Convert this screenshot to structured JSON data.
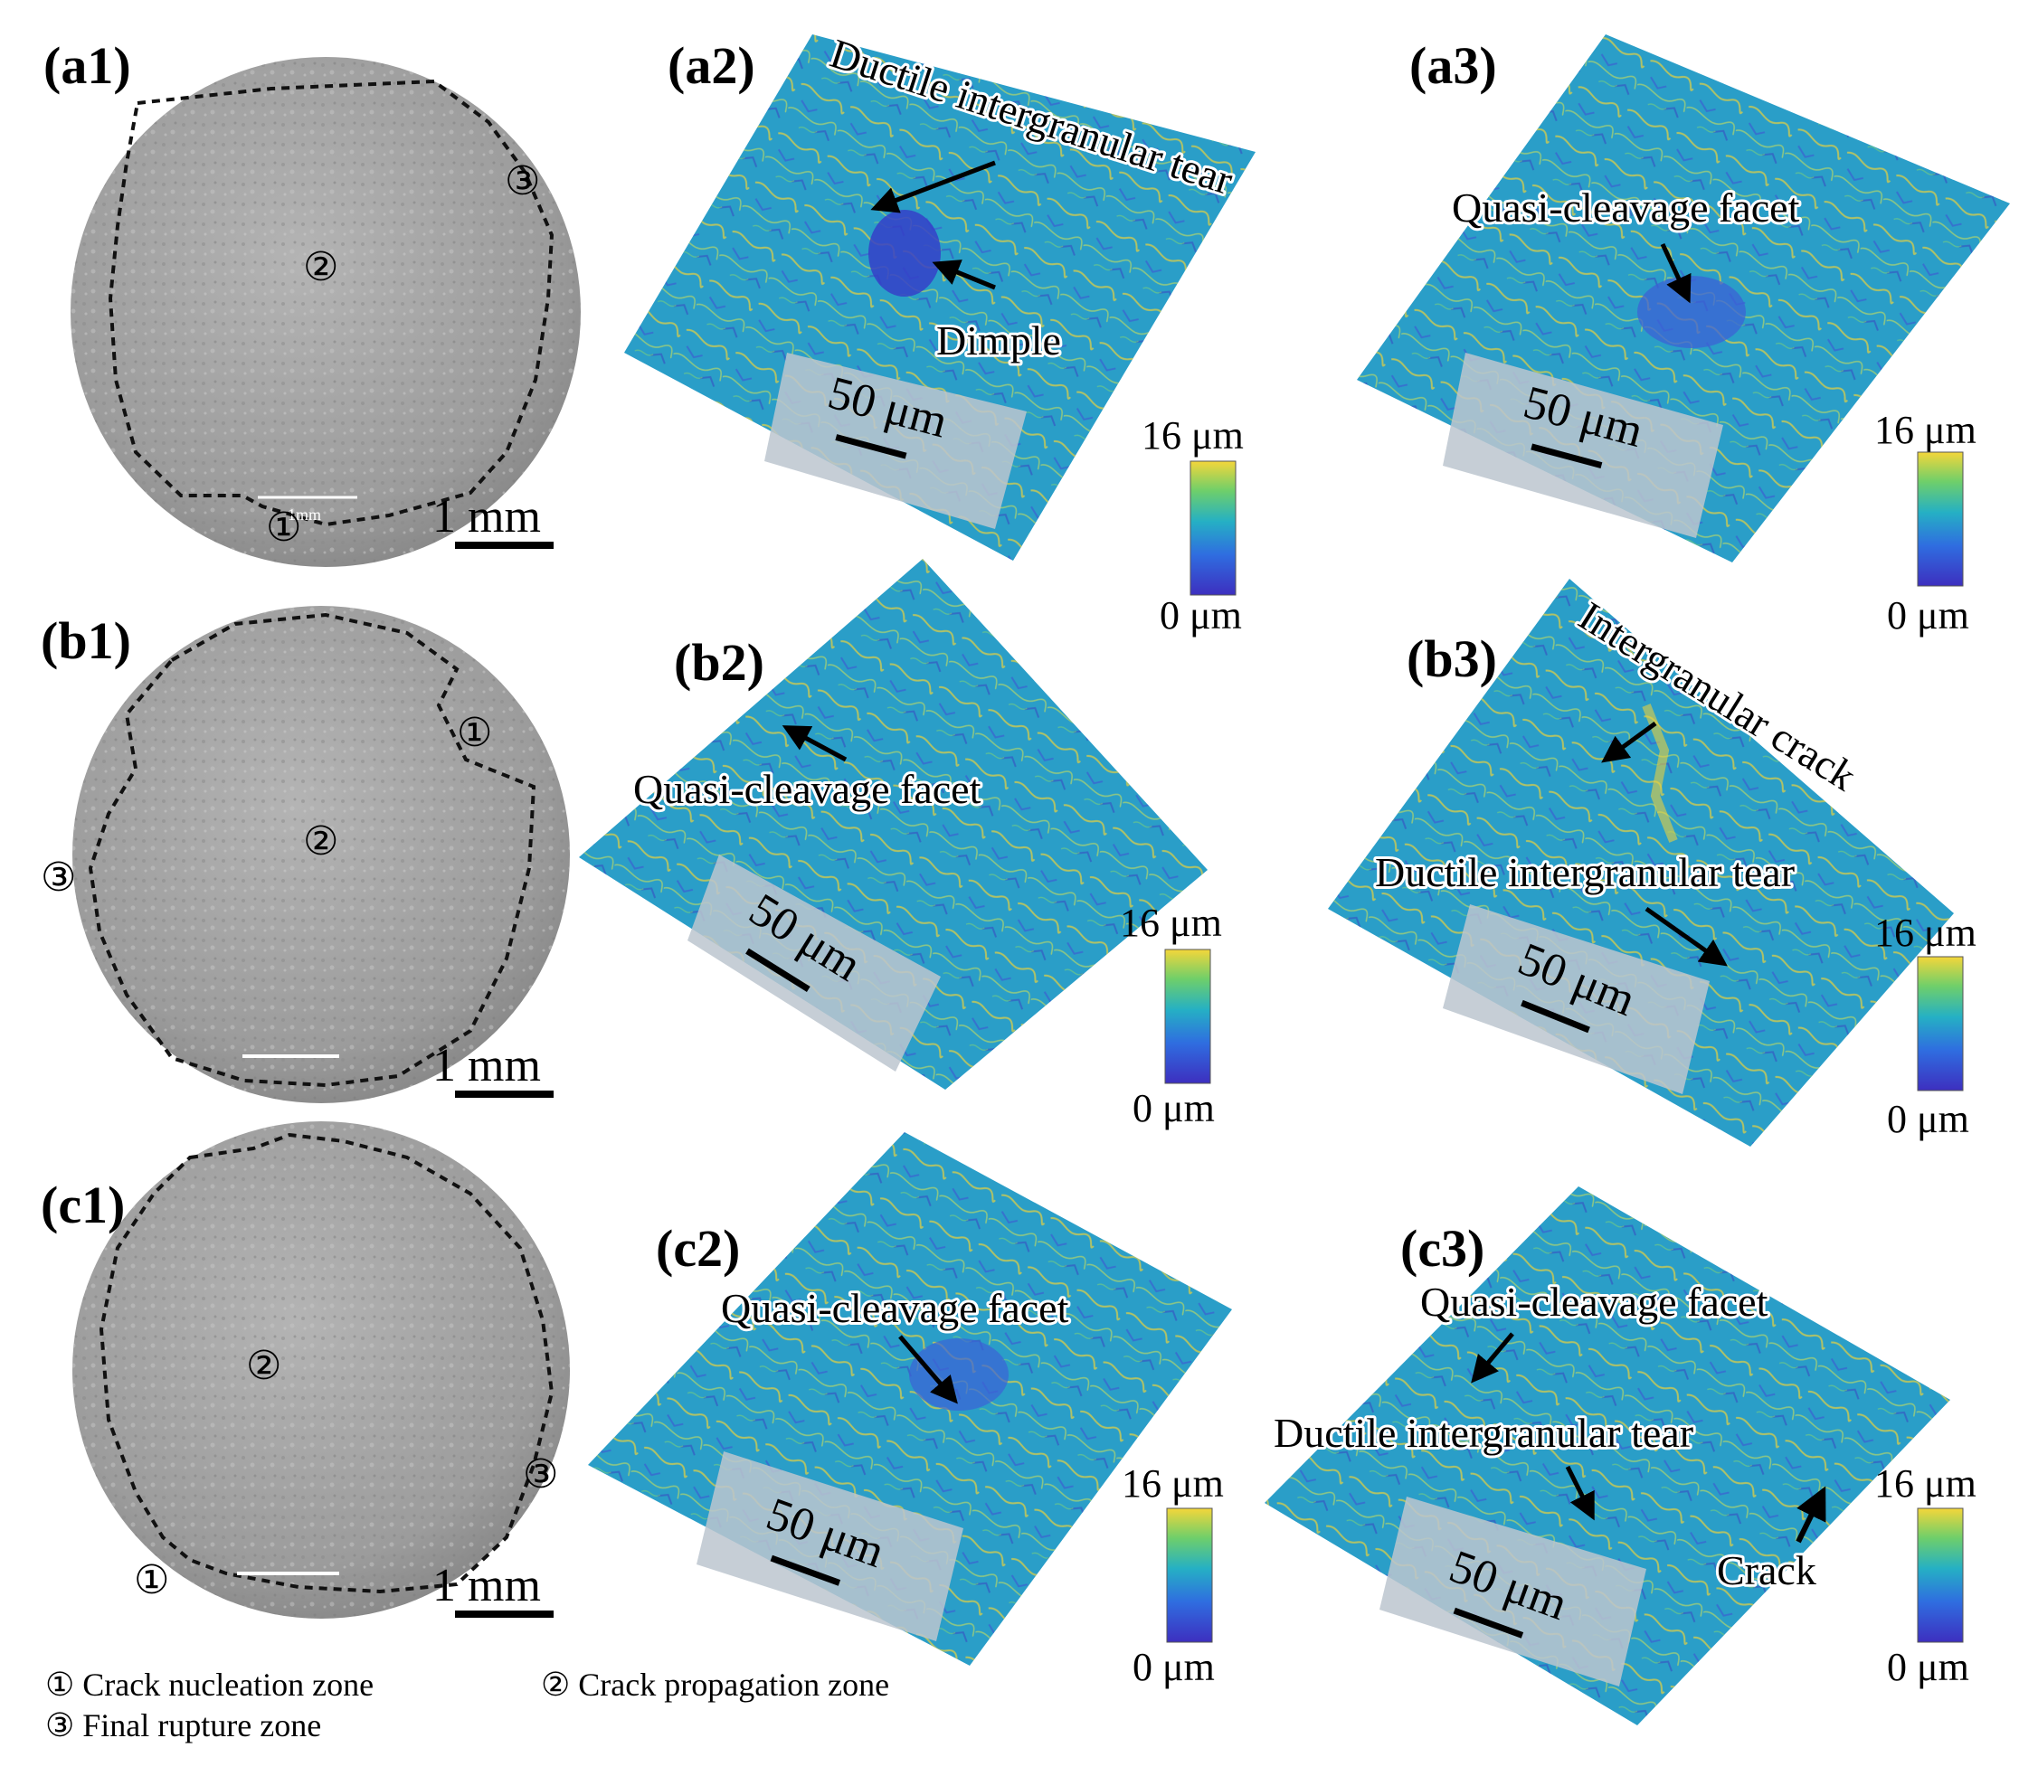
{
  "panels": {
    "a1": {
      "label": "(a1)",
      "zone1": "①",
      "zone2": "②",
      "zone3": "③",
      "scale": "1 mm",
      "inner_scale": "1mm"
    },
    "a2": {
      "label": "(a2)",
      "ann1": "Ductile intergranular tear",
      "ann2": "Dimple",
      "scale": "50 μm",
      "cb_max": "16 μm",
      "cb_min": "0 μm"
    },
    "a3": {
      "label": "(a3)",
      "ann1": "Quasi-cleavage facet",
      "scale": "50 μm",
      "cb_max": "16 μm",
      "cb_min": "0 μm"
    },
    "b1": {
      "label": "(b1)",
      "zone1": "①",
      "zone2": "②",
      "zone3": "③",
      "scale": "1 mm"
    },
    "b2": {
      "label": "(b2)",
      "ann1": "Quasi-cleavage facet",
      "scale": "50 μm",
      "cb_max": "16 μm",
      "cb_min": "0 μm"
    },
    "b3": {
      "label": "(b3)",
      "ann1": "Intergranular crack",
      "ann2": "Ductile intergranular tear",
      "scale": "50 μm",
      "cb_max": "16 μm",
      "cb_min": "0 μm"
    },
    "c1": {
      "label": "(c1)",
      "zone1": "①",
      "zone2": "②",
      "zone3": "③",
      "scale": "1 mm"
    },
    "c2": {
      "label": "(c2)",
      "ann1": "Quasi-cleavage facet",
      "scale": "50 μm",
      "cb_max": "16 μm",
      "cb_min": "0 μm"
    },
    "c3": {
      "label": "(c3)",
      "ann1": "Quasi-cleavage facet",
      "ann2": "Ductile intergranular tear",
      "ann3": "Crack",
      "scale": "50 μm",
      "cb_max": "16 μm",
      "cb_min": "0 μm"
    }
  },
  "legend": {
    "item1": "① Crack nucleation zone",
    "item2": "② Crack propagation zone",
    "item3": "③ Final rupture zone"
  },
  "colors": {
    "height_low": "#3a3fd0",
    "height_mid": "#2aa2c4",
    "height_high": "#f2d435",
    "sem_gray": "#a8a8a8"
  }
}
